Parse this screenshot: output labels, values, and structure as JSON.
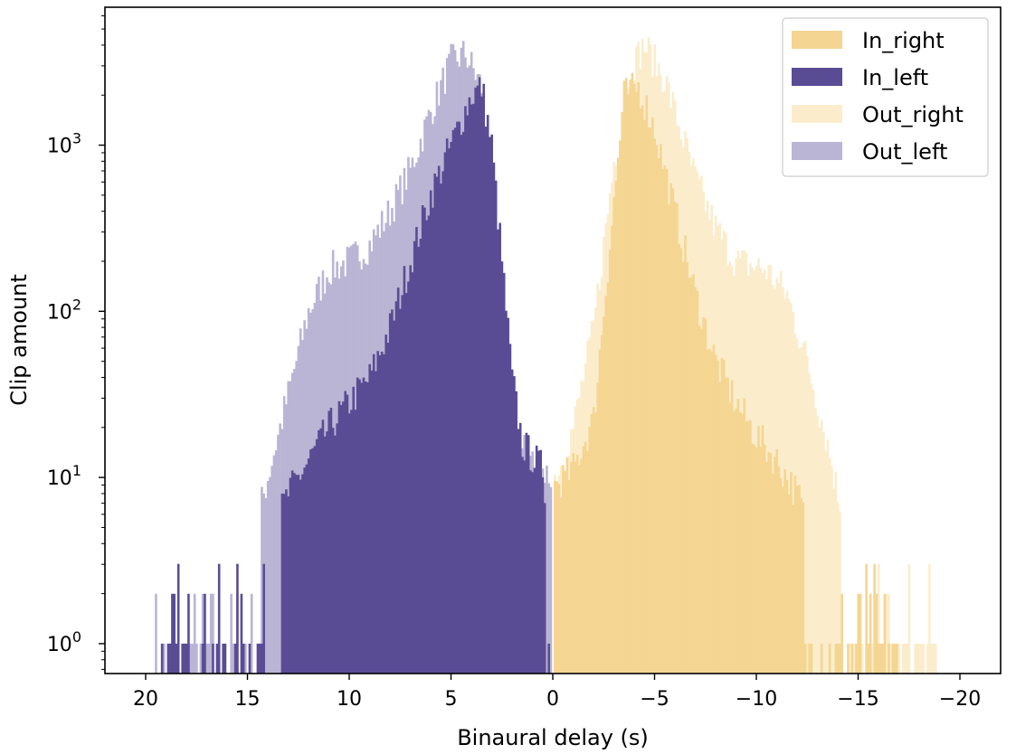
{
  "chart_data": {
    "type": "bar",
    "title": "",
    "xlabel": "Binaural delay (s)",
    "ylabel": "Clip amount",
    "xlim": [
      22,
      -22
    ],
    "ylim_log10": [
      -0.18,
      3.83
    ],
    "yscale": "log",
    "grid": false,
    "legend_position": "top-right",
    "bin_width": 0.1,
    "x_ticks": [
      20,
      15,
      10,
      5,
      0,
      -5,
      -10,
      -15,
      -20
    ],
    "x_tick_labels": [
      "20",
      "15",
      "10",
      "5",
      "0",
      "−5",
      "−10",
      "−15",
      "−20"
    ],
    "y_ticks": [
      1,
      10,
      100,
      1000
    ],
    "y_tick_labels": [
      {
        "base": "10",
        "exp": "0"
      },
      {
        "base": "10",
        "exp": "1"
      },
      {
        "base": "10",
        "exp": "2"
      },
      {
        "base": "10",
        "exp": "3"
      }
    ],
    "series": [
      {
        "name": "Out_left",
        "color": "#bab5d4",
        "shape": [
          [
            19.6,
            0.0
          ],
          [
            16.0,
            0.0
          ],
          [
            15.0,
            0.5
          ],
          [
            14.0,
            1.0
          ],
          [
            13.0,
            1.5
          ],
          [
            12.0,
            2.0
          ],
          [
            11.0,
            2.25
          ],
          [
            10.0,
            2.3
          ],
          [
            9.0,
            2.4
          ],
          [
            8.0,
            2.6
          ],
          [
            7.0,
            2.85
          ],
          [
            6.0,
            3.2
          ],
          [
            5.0,
            3.5
          ],
          [
            4.3,
            3.55
          ],
          [
            3.5,
            3.35
          ],
          [
            3.0,
            2.6
          ],
          [
            2.5,
            1.8
          ],
          [
            2.0,
            1.4
          ],
          [
            1.0,
            1.1
          ],
          [
            0.1,
            1.0
          ]
        ]
      },
      {
        "name": "In_left",
        "color": "#5a4c94",
        "shape": [
          [
            19.2,
            0.0
          ],
          [
            17.0,
            0.0
          ],
          [
            15.5,
            0.2
          ],
          [
            14.0,
            0.6
          ],
          [
            13.0,
            0.9
          ],
          [
            12.0,
            1.1
          ],
          [
            11.0,
            1.3
          ],
          [
            10.0,
            1.45
          ],
          [
            9.0,
            1.6
          ],
          [
            8.0,
            1.9
          ],
          [
            7.0,
            2.3
          ],
          [
            6.0,
            2.7
          ],
          [
            5.0,
            3.0
          ],
          [
            4.0,
            3.3
          ],
          [
            3.5,
            3.35
          ],
          [
            3.0,
            3.0
          ],
          [
            2.5,
            2.3
          ],
          [
            2.0,
            1.6
          ],
          [
            1.5,
            1.2
          ],
          [
            0.5,
            1.05
          ],
          [
            0.1,
            0.5
          ]
        ]
      },
      {
        "name": "Out_right",
        "color": "#fbedcc",
        "shape": [
          [
            -0.1,
            1.0
          ],
          [
            -0.5,
            1.1
          ],
          [
            -1.0,
            1.3
          ],
          [
            -2.0,
            1.9
          ],
          [
            -3.0,
            2.9
          ],
          [
            -4.0,
            3.5
          ],
          [
            -4.5,
            3.6
          ],
          [
            -5.5,
            3.4
          ],
          [
            -7.0,
            2.8
          ],
          [
            -8.0,
            2.5
          ],
          [
            -9.0,
            2.3
          ],
          [
            -10.5,
            2.25
          ],
          [
            -11.5,
            2.1
          ],
          [
            -12.5,
            1.7
          ],
          [
            -13.5,
            1.2
          ],
          [
            -14.5,
            0.6
          ],
          [
            -15.5,
            0.2
          ],
          [
            -16.5,
            0.0
          ],
          [
            -19.0,
            0.0
          ]
        ]
      },
      {
        "name": "In_right",
        "color": "#f5d592",
        "shape": [
          [
            -0.1,
            0.95
          ],
          [
            -1.0,
            1.05
          ],
          [
            -2.0,
            1.35
          ],
          [
            -2.8,
            2.4
          ],
          [
            -3.5,
            3.3
          ],
          [
            -4.2,
            3.35
          ],
          [
            -5.0,
            3.1
          ],
          [
            -6.0,
            2.6
          ],
          [
            -7.0,
            2.1
          ],
          [
            -8.0,
            1.7
          ],
          [
            -9.0,
            1.45
          ],
          [
            -10.0,
            1.25
          ],
          [
            -11.0,
            1.1
          ],
          [
            -12.0,
            0.9
          ],
          [
            -13.0,
            0.6
          ],
          [
            -13.6,
            0.2
          ],
          [
            -14.0,
            0.0
          ],
          [
            -17.0,
            0.0
          ]
        ]
      }
    ],
    "legend_order": [
      "In_right",
      "In_left",
      "Out_right",
      "Out_left"
    ]
  }
}
